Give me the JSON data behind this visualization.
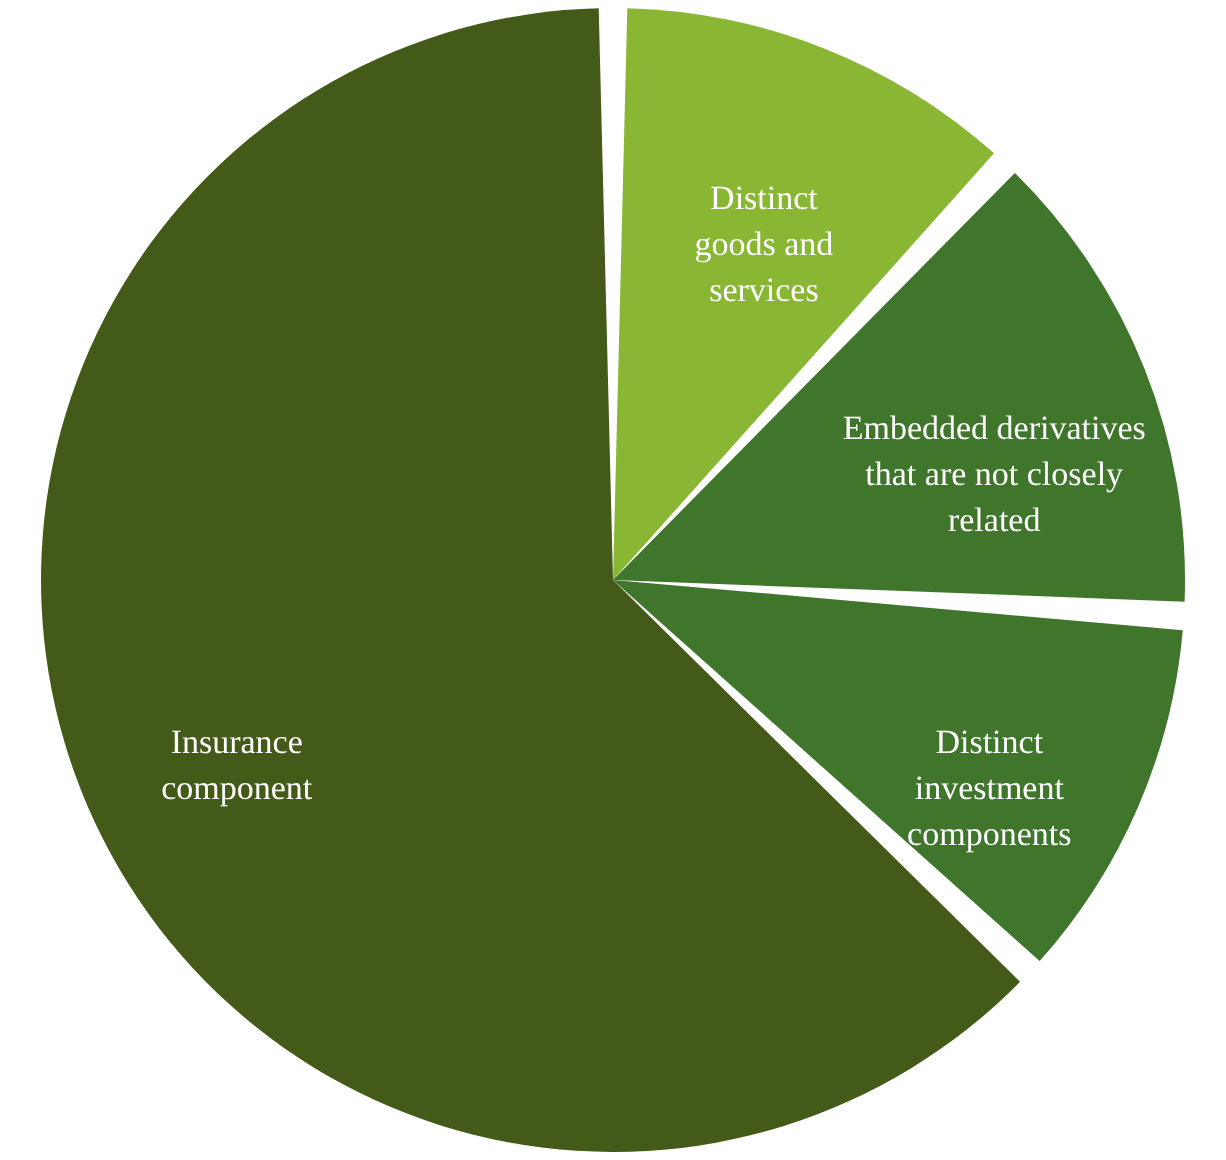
{
  "chart_data": {
    "type": "pie",
    "categories": [
      "Distinct goods and services",
      "Embedded derivatives that are not closely related",
      "Distinct investment components",
      "Insurance component"
    ],
    "values": [
      12,
      14,
      11,
      63
    ],
    "colors": [
      "#8ab733",
      "#40752c",
      "#40752c",
      "#445a18"
    ]
  }
}
